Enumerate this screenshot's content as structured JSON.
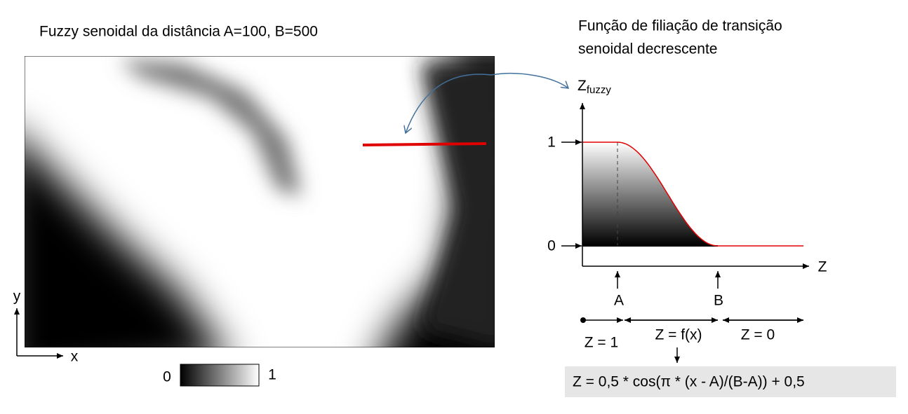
{
  "map": {
    "title": "Fuzzy senoidal da distância A=100, B=500",
    "y_label": "y",
    "x_label": "x",
    "legend": {
      "min": "0",
      "max": "1"
    }
  },
  "function_plot": {
    "title_lines": [
      "Função de filiação de transição",
      "senoidal decrescente"
    ],
    "y_axis": {
      "label": "Z",
      "subscript": "fuzzy"
    },
    "y_ticks": [
      "1",
      "0"
    ],
    "x_axis_label": "Z",
    "markers": [
      "A",
      "B"
    ],
    "ranges": [
      "Z = 1",
      "Z = f(x)",
      "Z = 0"
    ],
    "formula": "Z = 0,5 * cos(π * (x - A)/(B-A)) + 0,5"
  }
}
